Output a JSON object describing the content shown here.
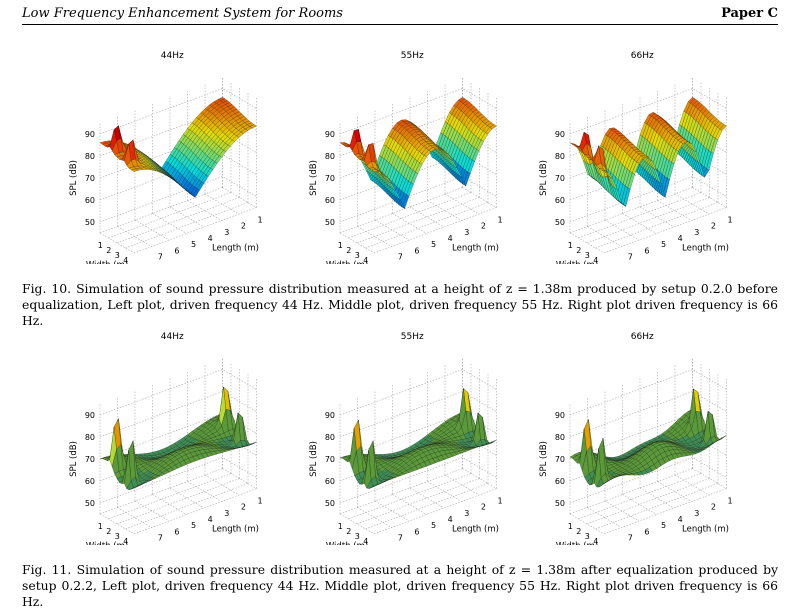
{
  "header": {
    "running_title": "Low Frequency Enhancement System for Rooms",
    "paper_label": "Paper C"
  },
  "figure10": {
    "caption": "Fig. 10. Simulation of sound pressure distribution measured at a height of z = 1.38m produced by setup 0.2.0 before equalization, Left plot, driven frequency 44 Hz. Middle plot, driven frequency 55 Hz. Right plot driven frequency is 66 Hz.",
    "plots": [
      {
        "title": "44Hz"
      },
      {
        "title": "55Hz"
      },
      {
        "title": "66Hz"
      }
    ]
  },
  "figure11": {
    "caption": "Fig. 11. Simulation of sound pressure distribution measured at a height of z = 1.38m after equalization produced by setup 0.2.2, Left plot, driven frequency 44 Hz. Middle plot, driven frequency 55 Hz. Right plot driven frequency is 66 Hz.",
    "plots": [
      {
        "title": "44Hz"
      },
      {
        "title": "55Hz"
      },
      {
        "title": "66Hz"
      }
    ]
  },
  "axes": {
    "zlabel": "SPL (dB)",
    "xlabel": "Width (m)",
    "ylabel": "Length (m)",
    "z_ticks": [
      "90",
      "80",
      "70",
      "60",
      "50"
    ],
    "x_ticks": [
      "1",
      "2",
      "3",
      "4"
    ],
    "y_ticks": [
      "1",
      "2",
      "3",
      "4",
      "5",
      "6",
      "7"
    ]
  },
  "colors": {
    "surface_high": "#b22222",
    "surface_mid": "#d4b030",
    "surface_low": "#2a50c8",
    "equalized_surface": "#4f8a3a",
    "grid": "#9a9a9a"
  }
}
